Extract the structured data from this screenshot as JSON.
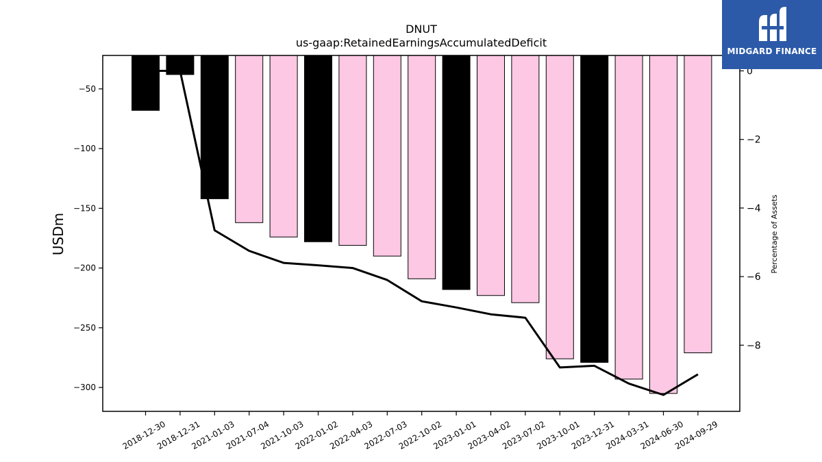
{
  "brand": {
    "name": "MIDGARD FINANCE",
    "bg_color": "#2c5aa8"
  },
  "chart_data": {
    "type": "bar",
    "title": "DNUT",
    "subtitle": "us-gaap:RetainedEarningsAccumulatedDeficit",
    "ylabel": "USDm",
    "y2label": "Percentage of Assets",
    "ylim": [
      -320,
      -22
    ],
    "y2lim": [
      -9.93,
      0.45
    ],
    "yticks": [
      -50,
      -100,
      -150,
      -200,
      -250,
      -300
    ],
    "y2ticks": [
      0,
      -2,
      -4,
      -6,
      -8
    ],
    "categories": [
      "2018-12-30",
      "2018-12-31",
      "2021-01-03",
      "2021-07-04",
      "2021-10-03",
      "2022-01-02",
      "2022-04-03",
      "2022-07-03",
      "2022-10-02",
      "2023-01-01",
      "2023-04-02",
      "2023-07-02",
      "2023-10-01",
      "2023-12-31",
      "2024-03-31",
      "2024-06-30",
      "2024-09-29"
    ],
    "series": [
      {
        "values": [
          -68,
          -38,
          -142,
          -162,
          -174,
          -178,
          -181,
          -190,
          -209,
          -218,
          -223,
          -229,
          -276,
          -279,
          -293,
          -305,
          -271
        ]
      },
      {
        "values": [
          0.0,
          0.0,
          -4.65,
          -5.25,
          -5.6,
          -5.67,
          -5.75,
          -6.1,
          -6.72,
          -6.9,
          -7.1,
          -7.2,
          -8.65,
          -8.6,
          -9.12,
          -9.45,
          -8.85
        ]
      }
    ],
    "bar_colors": [
      "#000000",
      "#000000",
      "#000000",
      "#fcc8e4",
      "#fcc8e4",
      "#000000",
      "#fcc8e4",
      "#fcc8e4",
      "#fcc8e4",
      "#000000",
      "#fcc8e4",
      "#fcc8e4",
      "#fcc8e4",
      "#000000",
      "#fcc8e4",
      "#fcc8e4",
      "#fcc8e4"
    ],
    "line_color": "#000000",
    "grid": false
  }
}
